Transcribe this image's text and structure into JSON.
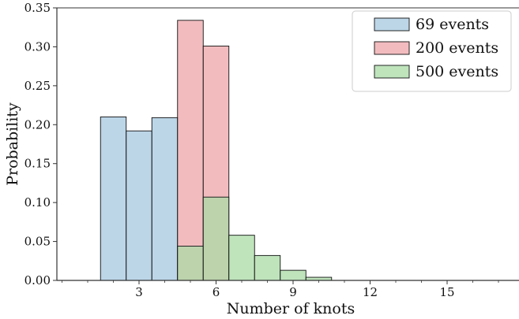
{
  "chart_data": {
    "type": "bar",
    "xlabel": "Number of knots",
    "ylabel": "Probability",
    "xlim": [
      -0.2,
      17.8
    ],
    "ylim": [
      0,
      0.35
    ],
    "x_ticks": [
      3,
      6,
      9,
      12,
      15
    ],
    "y_ticks": [
      0.0,
      0.05,
      0.1,
      0.15,
      0.2,
      0.25,
      0.3,
      0.35
    ],
    "bin_edges": [
      1.5,
      2.5,
      3.5,
      4.5,
      5.5,
      6.5,
      7.5,
      8.5,
      9.5,
      10.5,
      11.5,
      12.5,
      13.5,
      14.5,
      15.5,
      16.5
    ],
    "legend_position": "top-right",
    "series": [
      {
        "name": "69 events",
        "color": "#a6c8e0",
        "values": [
          0.21,
          0.192,
          0.209,
          0.0,
          0.0,
          0.0,
          0.0,
          0.0,
          0.0,
          0.0,
          0.0,
          0.0,
          0.0,
          0.0,
          0.0
        ]
      },
      {
        "name": "200 events",
        "color": "#eea6aa",
        "values": [
          0.0,
          0.0,
          0.0,
          0.334,
          0.301,
          0.0,
          0.0,
          0.0,
          0.0,
          0.0,
          0.0,
          0.0,
          0.0,
          0.0,
          0.0
        ]
      },
      {
        "name": "500 events",
        "color": "#a9dba6",
        "values": [
          0.0,
          0.0,
          0.0,
          0.044,
          0.107,
          0.058,
          0.032,
          0.013,
          0.004,
          0.0,
          0.0,
          0.0,
          0.0,
          0.0,
          0.0
        ]
      }
    ]
  }
}
